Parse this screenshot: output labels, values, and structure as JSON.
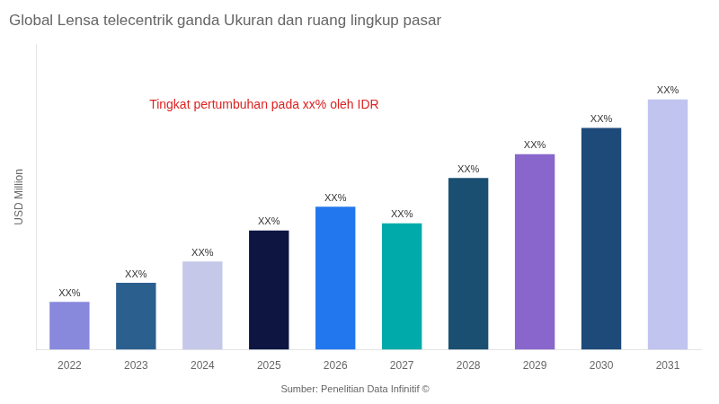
{
  "chart_data": {
    "type": "bar",
    "title": "Global Lensa telecentrik ganda Ukuran dan ruang lingkup pasar",
    "y_label": "USD Million",
    "annotation": {
      "text": "Tingkat pertumbuhan pada xx% oleh IDR",
      "color": "#dd2222"
    },
    "source": "Sumber: Penelitian Data Infinitif ©",
    "categories": [
      "2022",
      "2023",
      "2024",
      "2025",
      "2026",
      "2027",
      "2028",
      "2029",
      "2030",
      "2031"
    ],
    "values": [
      2.0,
      2.8,
      3.7,
      5.0,
      6.0,
      5.3,
      7.2,
      8.2,
      9.3,
      10.5
    ],
    "value_labels": [
      "XX%",
      "XX%",
      "XX%",
      "XX%",
      "XX%",
      "XX%",
      "XX%",
      "XX%",
      "XX%",
      "XX%"
    ],
    "colors": [
      "#8888dd",
      "#2b5f8e",
      "#c5c8e8",
      "#0d1540",
      "#2277ee",
      "#00aaaa",
      "#1a4f72",
      "#8866cc",
      "#1e4a7a",
      "#c0c4ef"
    ],
    "ylim": [
      0,
      12.81
    ],
    "grid": false,
    "tick_labels": "x"
  }
}
